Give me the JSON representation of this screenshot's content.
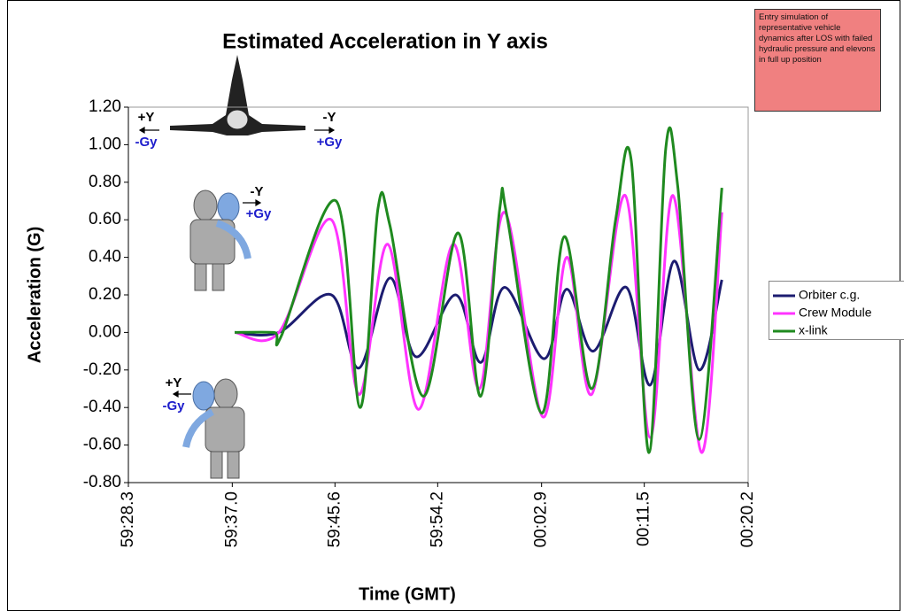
{
  "chart_data": {
    "type": "line",
    "title": "Estimated Acceleration in Y axis",
    "x_label": "Time (GMT)",
    "y_label": "Acceleration (G)",
    "note": "Entry simulation of representative vehicle dynamics after LOS with failed hydraulic pressure and elevons in full up position",
    "annotations": [
      "+Y",
      "-Gy",
      "-Y",
      "+Gy",
      "-Y",
      "+Gy",
      "+Y",
      "-Gy"
    ],
    "xlim": [
      3568.3,
      3620.2
    ],
    "xticks": [
      {
        "value": 3568.3,
        "label": "59:28.3"
      },
      {
        "value": 3577.0,
        "label": "59:37.0"
      },
      {
        "value": 3585.6,
        "label": "59:45.6"
      },
      {
        "value": 3594.2,
        "label": "59:54.2"
      },
      {
        "value": 3602.9,
        "label": "00:02.9"
      },
      {
        "value": 3611.5,
        "label": "00:11.5"
      },
      {
        "value": 3620.2,
        "label": "00:20.2"
      }
    ],
    "ylim": [
      -0.8,
      1.2
    ],
    "yticks": [
      {
        "value": -0.8,
        "label": "-0.80"
      },
      {
        "value": -0.6,
        "label": "-0.60"
      },
      {
        "value": -0.4,
        "label": "-0.40"
      },
      {
        "value": -0.2,
        "label": "-0.20"
      },
      {
        "value": 0,
        "label": "0.00"
      },
      {
        "value": 0.2,
        "label": "0.20"
      },
      {
        "value": 0.4,
        "label": "0.40"
      },
      {
        "value": 0.6,
        "label": "0.60"
      },
      {
        "value": 0.8,
        "label": "0.80"
      },
      {
        "value": 1.0,
        "label": "1.00"
      },
      {
        "value": 1.2,
        "label": "1.20"
      }
    ],
    "grid": false,
    "legend": "right",
    "series": [
      {
        "name": "Orbiter c.g.",
        "color": "#1c1c70",
        "x": [
          3577.2,
          3580.9,
          3585.3,
          3587.6,
          3590.2,
          3592.4,
          3595.7,
          3597.8,
          3599.8,
          3603.1,
          3605.0,
          3607.2,
          3610.0,
          3612.0,
          3614.0,
          3616.1,
          3618.0
        ],
        "values": [
          0,
          0,
          0.2,
          -0.19,
          0.29,
          -0.13,
          0.2,
          -0.16,
          0.24,
          -0.14,
          0.23,
          -0.1,
          0.24,
          -0.28,
          0.38,
          -0.2,
          0.28
        ]
      },
      {
        "name": "Crew Module",
        "color": "#ff33ff",
        "x": [
          3577.2,
          3580.9,
          3585.3,
          3587.6,
          3590.0,
          3592.6,
          3595.5,
          3597.7,
          3599.8,
          3603.0,
          3605.0,
          3607.1,
          3609.9,
          3612.0,
          3613.9,
          3616.3,
          3618.0
        ],
        "values": [
          0,
          0,
          0.6,
          -0.33,
          0.47,
          -0.41,
          0.47,
          -0.3,
          0.64,
          -0.45,
          0.4,
          -0.33,
          0.73,
          -0.56,
          0.73,
          -0.64,
          0.64
        ]
      },
      {
        "name": "x-link",
        "color": "#1f8a1f",
        "x": [
          3577.2,
          3580.5,
          3581.1,
          3585.7,
          3587.7,
          3589.2,
          3590.2,
          3593.0,
          3595.9,
          3597.8,
          3599.4,
          3600.0,
          3602.9,
          3604.8,
          3607.1,
          3609.1,
          3610.4,
          3611.9,
          3613.3,
          3614.3,
          3616.1,
          3618.0
        ],
        "values": [
          0,
          0,
          -0.02,
          0.7,
          -0.4,
          0.66,
          0.57,
          -0.34,
          0.53,
          -0.34,
          0.66,
          0.62,
          -0.43,
          0.51,
          -0.3,
          0.6,
          0.92,
          -0.64,
          0.98,
          0.78,
          -0.57,
          0.77
        ]
      }
    ]
  }
}
